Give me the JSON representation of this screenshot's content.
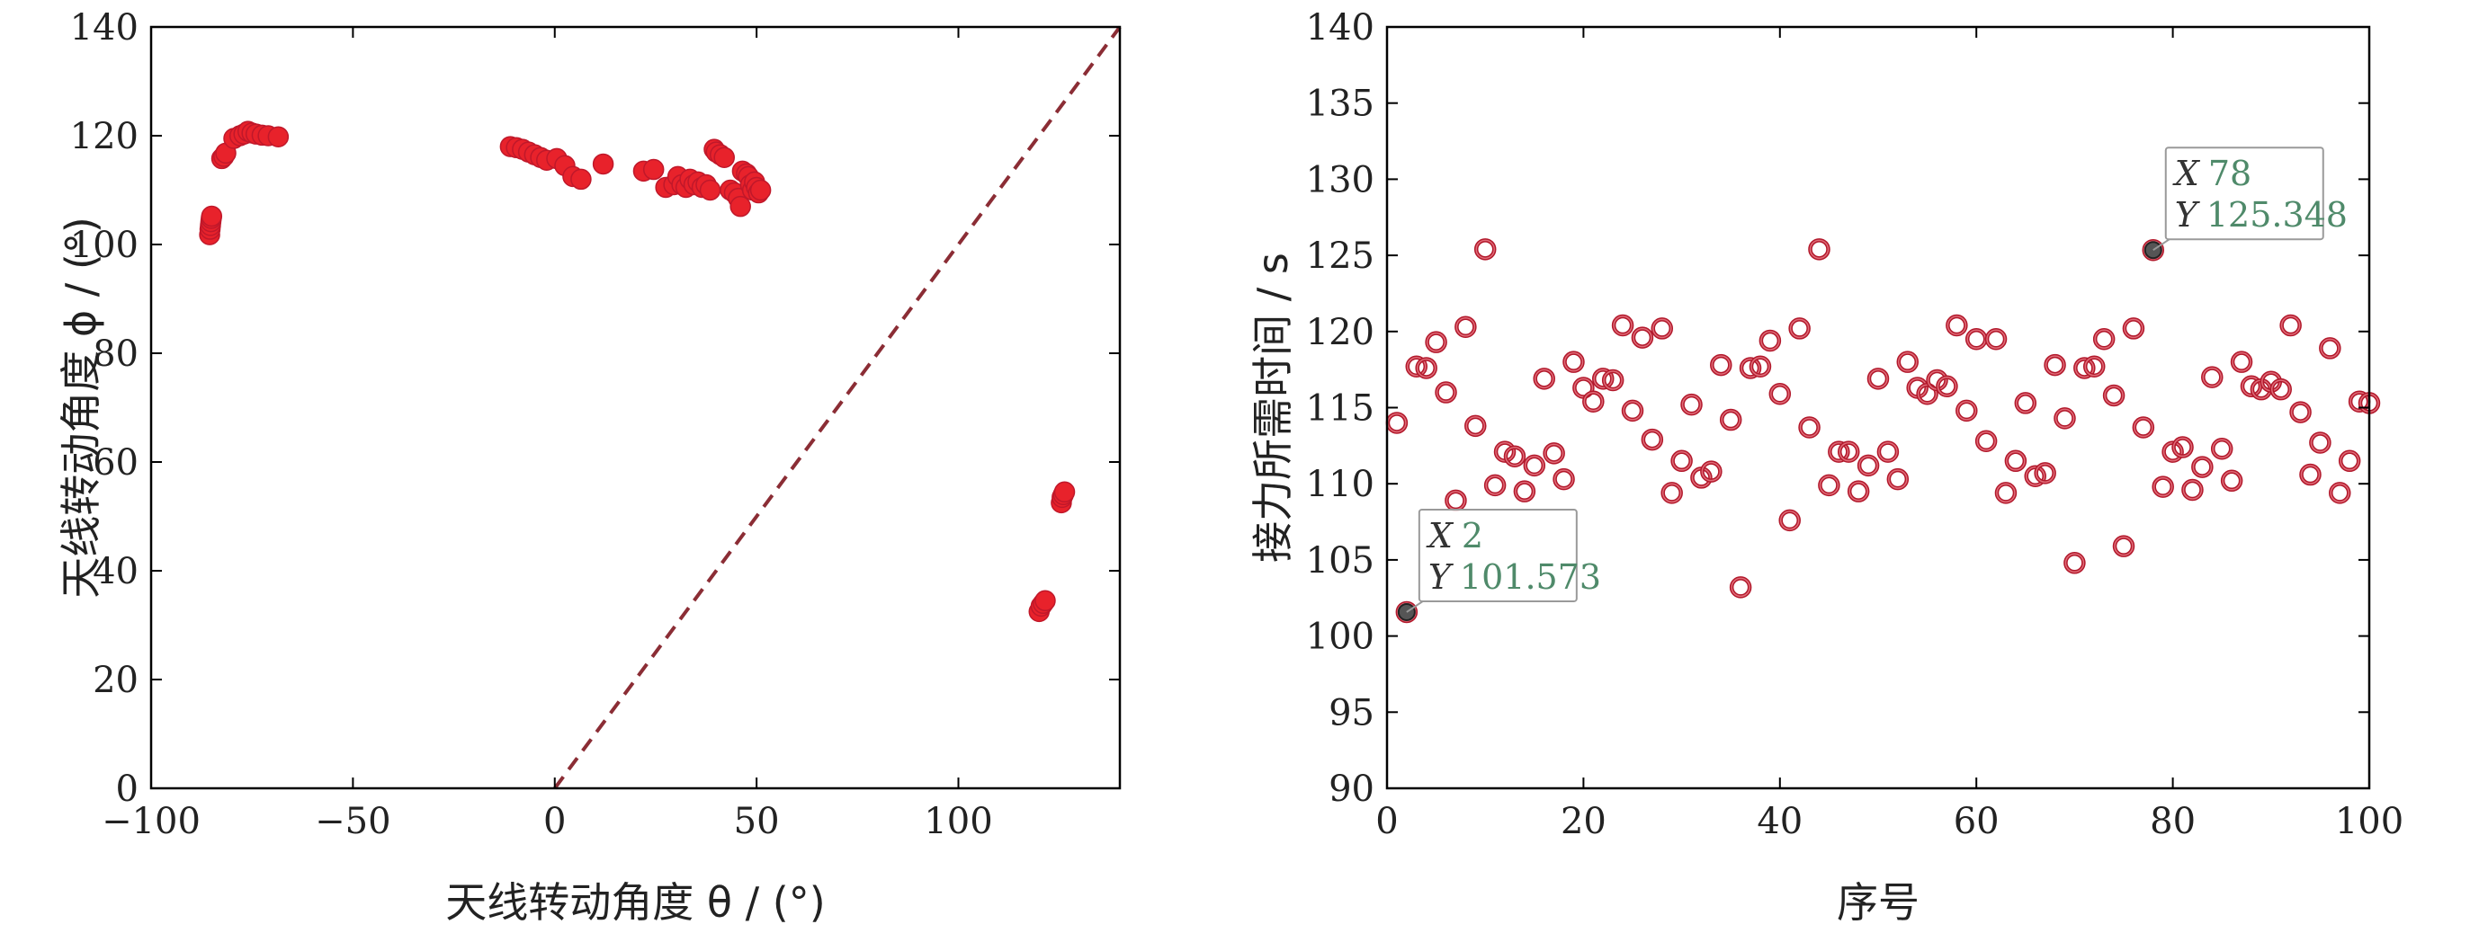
{
  "colors": {
    "scatter_fill": "#e8222b",
    "scatter_stroke": "#c0182a",
    "ring_outer": "#b2182b",
    "ring_inner": "#e06c78",
    "dashed_line": "#8b2d35",
    "axis": "#000000",
    "tip_value": "#4f8a6a"
  },
  "chart_data": [
    {
      "type": "scatter",
      "xlabel": "天线转动角度 θ / (°)",
      "ylabel": "天线转动角度 ϕ / (°)",
      "xlim": [
        -100,
        140
      ],
      "ylim": [
        0,
        140
      ],
      "xticks": [
        "−100",
        "−50",
        "0",
        "50",
        "100"
      ],
      "xtick_values": [
        -100,
        -50,
        0,
        50,
        100
      ],
      "yticks": [
        "0",
        "20",
        "40",
        "60",
        "80",
        "100",
        "120",
        "140"
      ],
      "ytick_values": [
        0,
        20,
        40,
        60,
        80,
        100,
        120,
        140
      ],
      "grid": false,
      "reference_line": {
        "style": "dashed",
        "from": [
          0,
          0
        ],
        "to": [
          140,
          140
        ]
      },
      "x": [
        -85.5,
        -85.4,
        -85.3,
        -85.2,
        -85.1,
        -85.0,
        -82.5,
        -82.0,
        -81.5,
        -79.5,
        -78.0,
        -77.0,
        -76.0,
        -75.0,
        -74.0,
        -72.5,
        -71.0,
        -68.5,
        -11.0,
        -9.5,
        -8.0,
        -6.5,
        -5.0,
        -3.5,
        -2.0,
        0.5,
        2.5,
        4.5,
        6.5,
        12.0,
        22.0,
        24.5,
        27.5,
        29.5,
        30.5,
        31.5,
        32.5,
        33.5,
        34.5,
        35.5,
        36.5,
        37.5,
        38.5,
        39.5,
        40.0,
        41.0,
        42.0,
        43.5,
        44.5,
        45.5,
        46.0,
        46.5,
        47.5,
        48.0,
        48.5,
        49.0,
        49.5,
        50.0,
        50.5,
        51.0,
        120.0,
        120.5,
        121.0,
        121.5,
        125.5,
        125.7,
        126.0,
        126.3
      ],
      "y": [
        101.8,
        102.8,
        103.5,
        104.2,
        104.8,
        105.2,
        115.8,
        116.2,
        116.8,
        119.5,
        120.0,
        120.3,
        120.8,
        120.5,
        120.3,
        120.1,
        120.0,
        119.8,
        118.0,
        117.8,
        117.5,
        117.0,
        116.5,
        116.0,
        115.5,
        115.8,
        114.5,
        112.5,
        112.0,
        114.8,
        113.5,
        113.8,
        110.5,
        111.0,
        112.5,
        111.0,
        110.5,
        112.0,
        111.0,
        111.5,
        110.5,
        111.0,
        110.0,
        117.5,
        117.0,
        116.5,
        116.0,
        110.0,
        109.5,
        108.5,
        107.0,
        113.5,
        113.0,
        112.5,
        111.0,
        110.0,
        111.5,
        110.5,
        109.5,
        110.0,
        32.5,
        33.5,
        34.0,
        34.5,
        52.5,
        53.5,
        54.0,
        54.5
      ]
    },
    {
      "type": "scatter",
      "xlabel": "序号",
      "ylabel": "接力所需时间 / s",
      "xlim": [
        0,
        100
      ],
      "ylim": [
        90,
        140
      ],
      "xticks": [
        "0",
        "20",
        "40",
        "60",
        "80",
        "100"
      ],
      "xtick_values": [
        0,
        20,
        40,
        60,
        80,
        100
      ],
      "yticks": [
        "90",
        "95",
        "100",
        "105",
        "110",
        "115",
        "120",
        "125",
        "130",
        "135",
        "140"
      ],
      "ytick_values": [
        90,
        95,
        100,
        105,
        110,
        115,
        120,
        125,
        130,
        135,
        140
      ],
      "grid": false,
      "x": [
        1,
        2,
        3,
        4,
        5,
        6,
        7,
        8,
        9,
        10,
        11,
        12,
        13,
        14,
        15,
        16,
        17,
        18,
        19,
        20,
        21,
        22,
        23,
        24,
        25,
        26,
        27,
        28,
        29,
        30,
        31,
        32,
        33,
        34,
        35,
        36,
        37,
        38,
        39,
        40,
        41,
        42,
        43,
        44,
        45,
        46,
        47,
        48,
        49,
        50,
        51,
        52,
        53,
        54,
        55,
        56,
        57,
        58,
        59,
        60,
        61,
        62,
        63,
        64,
        65,
        66,
        67,
        68,
        69,
        70,
        71,
        72,
        73,
        74,
        75,
        76,
        77,
        78,
        79,
        80,
        81,
        82,
        83,
        84,
        85,
        86,
        87,
        88,
        89,
        90,
        91,
        92,
        93,
        94,
        95,
        96,
        97,
        98,
        99,
        100
      ],
      "y": [
        114.0,
        101.573,
        117.7,
        117.6,
        119.3,
        116.0,
        108.9,
        120.3,
        113.8,
        125.4,
        109.9,
        112.1,
        111.8,
        109.5,
        111.2,
        116.9,
        112.0,
        110.3,
        118.0,
        116.3,
        115.4,
        116.9,
        116.8,
        120.4,
        114.8,
        119.6,
        112.9,
        120.2,
        109.4,
        111.5,
        115.2,
        110.4,
        110.8,
        117.8,
        114.2,
        103.2,
        117.6,
        117.7,
        119.4,
        115.9,
        107.6,
        120.2,
        113.7,
        125.4,
        109.9,
        112.1,
        112.1,
        109.5,
        111.2,
        116.9,
        112.1,
        110.3,
        118.0,
        116.3,
        115.9,
        116.8,
        116.4,
        120.4,
        114.8,
        119.5,
        112.8,
        119.5,
        109.4,
        111.5,
        115.3,
        110.5,
        110.7,
        117.8,
        114.3,
        104.8,
        117.6,
        117.7,
        119.5,
        115.8,
        105.9,
        120.2,
        113.7,
        125.348,
        109.8,
        112.1,
        112.4,
        109.6,
        111.1,
        117.0,
        112.3,
        110.2,
        118.0,
        116.4,
        116.2,
        116.7,
        116.2,
        120.4,
        114.7,
        110.6,
        112.7,
        118.9,
        109.4,
        111.5,
        115.4,
        115.3
      ],
      "datatips": [
        {
          "x_label": "X",
          "x_value": "2",
          "y_label": "Y",
          "y_value": "101.573"
        },
        {
          "x_label": "X",
          "x_value": "78",
          "y_label": "Y",
          "y_value": "125.348"
        }
      ]
    }
  ]
}
